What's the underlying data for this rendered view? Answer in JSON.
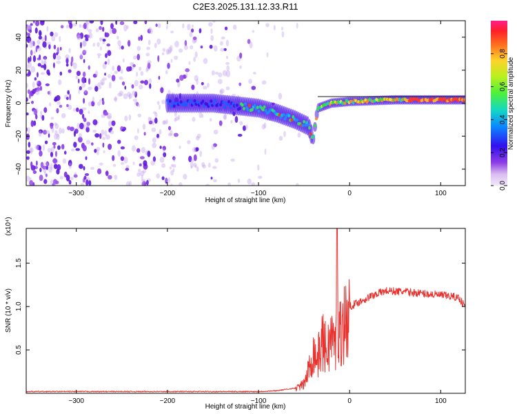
{
  "title": "C2E3.2025.131.12.33.R11",
  "chart_data": [
    {
      "type": "heatmap",
      "title": "C2E3.2025.131.12.33.R11",
      "xlabel": "Height of straight line (km)",
      "ylabel": "Frequency (Hz)",
      "xlim": [
        -355,
        127
      ],
      "ylim": [
        -50,
        50
      ],
      "xticks": [
        -300,
        -200,
        -100,
        0,
        100
      ],
      "yticks": [
        -40,
        -20,
        0,
        20,
        40
      ],
      "colorbar": {
        "label": "Normalized spectral amplitude",
        "range": [
          0,
          1
        ],
        "ticks": [
          0.0,
          0.2,
          0.4,
          0.6,
          0.8
        ],
        "tick_labels": [
          "0.0",
          "0.2",
          "0.4",
          "0.6",
          "0.8"
        ]
      },
      "ridge": {
        "x": [
          -200,
          -150,
          -100,
          -80,
          -60,
          -45,
          -40,
          -35,
          -20,
          0,
          50,
          100,
          127
        ],
        "y": [
          0,
          0,
          -3,
          -6,
          -10,
          -14,
          -22,
          -3,
          0,
          1,
          2,
          2,
          2
        ]
      }
    },
    {
      "type": "line",
      "ylabel": "SNR (10 * v/v)",
      "xlabel": "Height of straight line (km)",
      "y_multiplier": "(x10⁴)",
      "xlim": [
        -355,
        127
      ],
      "ylim": [
        0,
        1.9
      ],
      "xticks": [
        -300,
        -200,
        -100,
        0,
        100
      ],
      "yticks": [
        0.5,
        1.0,
        1.5
      ],
      "color": "#e8322e",
      "series": [
        {
          "x": [
            -355,
            -300,
            -200,
            -150,
            -100,
            -80,
            -60,
            -50,
            -45,
            -40,
            -35,
            -30,
            -25,
            -20,
            -15,
            -14,
            -12,
            -10,
            -5,
            0,
            10,
            20,
            30,
            40,
            60,
            80,
            100,
            110,
            120,
            127
          ],
          "y": [
            0.02,
            0.02,
            0.02,
            0.02,
            0.02,
            0.03,
            0.06,
            0.12,
            0.3,
            0.55,
            0.45,
            0.7,
            0.55,
            0.75,
            0.6,
            1.9,
            0.7,
            0.85,
            0.95,
            1.0,
            1.05,
            1.1,
            1.15,
            1.18,
            1.17,
            1.15,
            1.13,
            1.12,
            1.1,
            1.0
          ]
        }
      ]
    }
  ]
}
